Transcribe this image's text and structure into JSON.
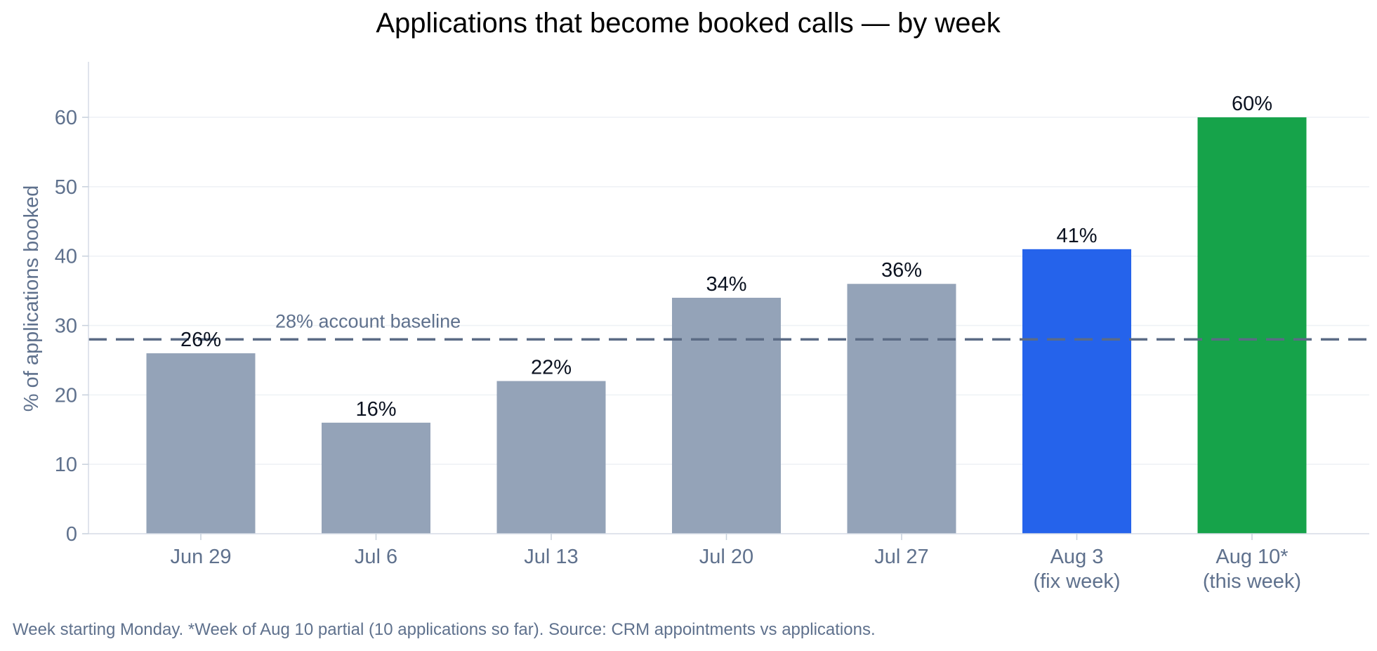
{
  "chart_data": {
    "type": "bar",
    "title": "Applications that become booked calls — by week",
    "xlabel": "",
    "ylabel": "% of applications booked",
    "ylim": [
      0,
      68
    ],
    "yticks": [
      0,
      10,
      20,
      30,
      40,
      50,
      60
    ],
    "grid": true,
    "categories": [
      [
        "Jun 29"
      ],
      [
        "Jul 6"
      ],
      [
        "Jul 13"
      ],
      [
        "Jul 20"
      ],
      [
        "Jul 27"
      ],
      [
        "Aug 3",
        "(fix week)"
      ],
      [
        "Aug 10*",
        "(this week)"
      ]
    ],
    "values": [
      26,
      16,
      22,
      34,
      36,
      41,
      60
    ],
    "value_labels": [
      "26%",
      "16%",
      "22%",
      "34%",
      "36%",
      "41%",
      "60%"
    ],
    "bar_colors": [
      "#94a3b8",
      "#94a3b8",
      "#94a3b8",
      "#94a3b8",
      "#94a3b8",
      "#2563eb",
      "#16a34a"
    ],
    "reference_line": {
      "value": 28,
      "label": "28% account baseline",
      "style": "dashed",
      "color": "#5b6b85"
    },
    "footnote": "Week starting Monday. *Week of Aug 10 partial (10 applications so far). Source: CRM appointments vs applications."
  }
}
